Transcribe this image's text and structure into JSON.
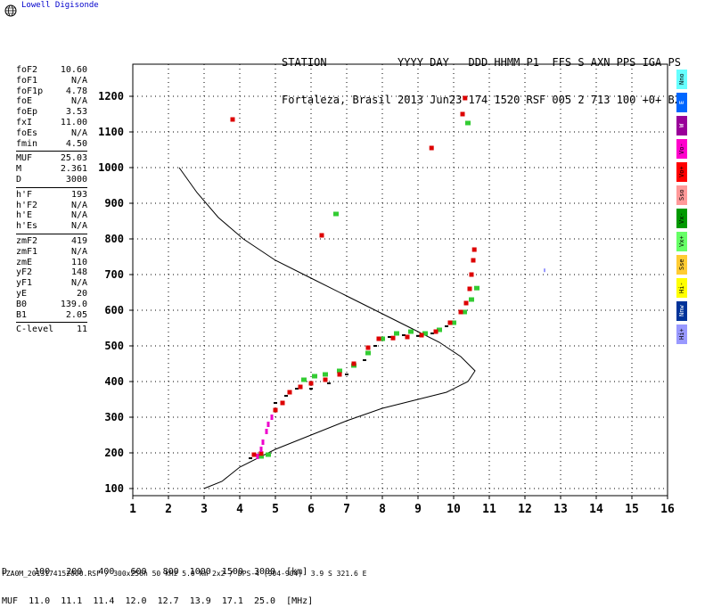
{
  "logo": {
    "text": "Lowell Digisonde"
  },
  "header": {
    "labels": "STATION           YYYY DAY   DDD HHMM P1  FFS S AXN PPS IGA PS",
    "values": "Fortaleza, Brasil 2013 Jun23 174 1520 RSF 005 2 713 100 +0+ B2"
  },
  "params": {
    "group1": [
      {
        "label": "foF2",
        "value": "10.60"
      },
      {
        "label": "foF1",
        "value": "N/A"
      },
      {
        "label": "foF1p",
        "value": "4.78"
      },
      {
        "label": "foE",
        "value": "N/A"
      },
      {
        "label": "foEp",
        "value": "3.53"
      },
      {
        "label": "fxI",
        "value": "11.00"
      },
      {
        "label": "foEs",
        "value": "N/A"
      },
      {
        "label": "fmin",
        "value": "4.50"
      }
    ],
    "group2": [
      {
        "label": "MUF",
        "value": "25.03"
      },
      {
        "label": "M",
        "value": "2.361"
      },
      {
        "label": "D",
        "value": "3000"
      }
    ],
    "group3": [
      {
        "label": "h'F",
        "value": "193"
      },
      {
        "label": "h'F2",
        "value": "N/A"
      },
      {
        "label": "h'E",
        "value": "N/A"
      },
      {
        "label": "h'Es",
        "value": "N/A"
      }
    ],
    "group4": [
      {
        "label": "zmF2",
        "value": "419"
      },
      {
        "label": "zmF1",
        "value": "N/A"
      },
      {
        "label": "zmE",
        "value": "110"
      },
      {
        "label": "yF2",
        "value": "148"
      },
      {
        "label": "yF1",
        "value": "N/A"
      },
      {
        "label": "yE",
        "value": "20"
      },
      {
        "label": "B0",
        "value": "139.0"
      },
      {
        "label": "B1",
        "value": "2.05"
      }
    ],
    "group5": [
      {
        "label": "C-level",
        "value": "11"
      }
    ]
  },
  "legend": [
    {
      "label": "Nno",
      "color": "#66ffff"
    },
    {
      "label": "E",
      "color": "#0066ff"
    },
    {
      "label": "W",
      "color": "#990099"
    },
    {
      "label": "Vo-",
      "color": "#ff00cc"
    },
    {
      "label": "Vo+",
      "color": "#ff0000"
    },
    {
      "label": "Sso",
      "color": "#ff9999"
    },
    {
      "label": "Vx-",
      "color": "#009900"
    },
    {
      "label": "Vx+",
      "color": "#66ff66"
    },
    {
      "label": "Sse",
      "color": "#ffcc33"
    },
    {
      "label": "Hi-",
      "color": "#ffff00"
    },
    {
      "label": "Nnw",
      "color": "#003399"
    },
    {
      "label": "Hi+",
      "color": "#9999ff"
    }
  ],
  "muf_table": {
    "row1": "D     100   200   400   600   800  1000  1500  3000  [km]",
    "row2": "MUF  11.0  11.1  11.4  12.0  12.7  13.9  17.1  25.0  [MHz]"
  },
  "footer": "FZA0M_2013174152000.RSF / 300x256h 50 kHz 5.0 km 2x2 / DPS-4 (904-904)  3.9 S 321.6 E",
  "chart_data": {
    "type": "scatter",
    "xlim": [
      1,
      16
    ],
    "ylim": [
      80,
      1290
    ],
    "xticks": [
      "1",
      "2",
      "3",
      "4",
      "5",
      "6",
      "7",
      "8",
      "9",
      "10",
      "11",
      "12",
      "13",
      "14",
      "15",
      "16"
    ],
    "yticks": [
      "100",
      "200",
      "300",
      "400",
      "500",
      "600",
      "700",
      "800",
      "900",
      "1000",
      "1100",
      "1200"
    ],
    "grid": true,
    "profile": [
      [
        2.3,
        1000
      ],
      [
        2.8,
        930
      ],
      [
        3.4,
        860
      ],
      [
        4.1,
        800
      ],
      [
        5.0,
        740
      ],
      [
        6.0,
        690
      ],
      [
        7.0,
        640
      ],
      [
        8.0,
        590
      ],
      [
        8.8,
        550
      ],
      [
        9.6,
        510
      ],
      [
        10.2,
        470
      ],
      [
        10.6,
        430
      ],
      [
        10.4,
        400
      ],
      [
        9.8,
        370
      ],
      [
        9.0,
        350
      ],
      [
        8.0,
        325
      ],
      [
        7.0,
        290
      ],
      [
        6.0,
        250
      ],
      [
        5.0,
        210
      ],
      [
        4.0,
        160
      ],
      [
        3.5,
        120
      ],
      [
        3.0,
        100
      ]
    ],
    "echo_red": [
      [
        4.4,
        195
      ],
      [
        4.6,
        198
      ],
      [
        5.0,
        320
      ],
      [
        5.2,
        340
      ],
      [
        5.4,
        370
      ],
      [
        5.7,
        385
      ],
      [
        6.0,
        395
      ],
      [
        6.4,
        405
      ],
      [
        6.8,
        420
      ],
      [
        7.2,
        450
      ],
      [
        7.6,
        495
      ],
      [
        7.9,
        520
      ],
      [
        8.3,
        522
      ],
      [
        8.7,
        525
      ],
      [
        9.1,
        530
      ],
      [
        9.5,
        540
      ],
      [
        9.9,
        565
      ],
      [
        10.2,
        595
      ],
      [
        10.35,
        620
      ],
      [
        10.45,
        660
      ],
      [
        10.5,
        700
      ],
      [
        10.55,
        740
      ],
      [
        10.58,
        770
      ],
      [
        10.25,
        1150
      ],
      [
        10.32,
        1195
      ],
      [
        9.38,
        1055
      ],
      [
        3.8,
        1135
      ],
      [
        6.3,
        810
      ]
    ],
    "echo_green": [
      [
        4.6,
        190
      ],
      [
        4.8,
        195
      ],
      [
        5.8,
        405
      ],
      [
        6.1,
        415
      ],
      [
        6.4,
        420
      ],
      [
        6.8,
        430
      ],
      [
        7.2,
        445
      ],
      [
        7.6,
        480
      ],
      [
        8.0,
        520
      ],
      [
        8.4,
        535
      ],
      [
        8.8,
        540
      ],
      [
        9.2,
        535
      ],
      [
        9.6,
        545
      ],
      [
        10.0,
        565
      ],
      [
        10.3,
        595
      ],
      [
        10.5,
        630
      ],
      [
        10.65,
        662
      ],
      [
        6.7,
        870
      ],
      [
        10.4,
        1125
      ]
    ],
    "echo_magenta": [
      [
        4.5,
        190
      ],
      [
        4.6,
        210
      ],
      [
        4.65,
        230
      ],
      [
        4.75,
        260
      ],
      [
        4.8,
        280
      ],
      [
        4.9,
        300
      ]
    ],
    "echo_black": [
      [
        4.3,
        185
      ],
      [
        5.0,
        340
      ],
      [
        5.3,
        360
      ],
      [
        5.6,
        380
      ],
      [
        6.0,
        380
      ],
      [
        6.5,
        395
      ],
      [
        7.0,
        420
      ],
      [
        7.5,
        460
      ],
      [
        7.8,
        500
      ],
      [
        8.2,
        525
      ],
      [
        8.6,
        530
      ],
      [
        9.0,
        528
      ],
      [
        9.4,
        535
      ],
      [
        9.8,
        555
      ]
    ],
    "echo_lavender": [
      [
        12.55,
        712
      ]
    ]
  }
}
